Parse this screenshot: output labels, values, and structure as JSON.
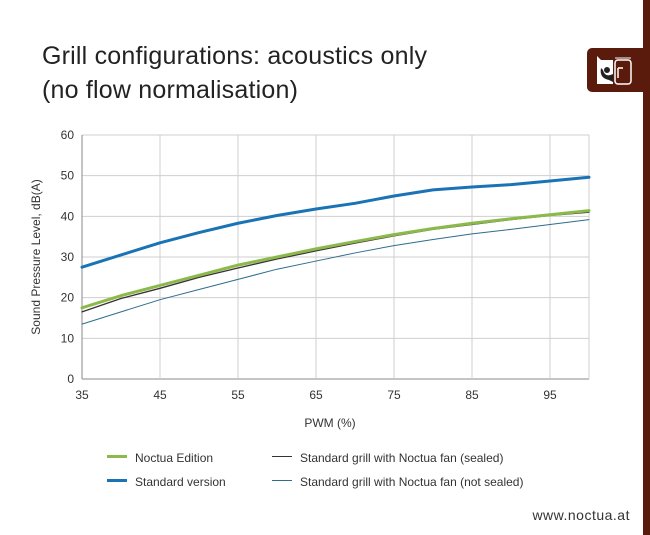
{
  "header": {
    "title_line1": "Grill configurations: acoustics only",
    "title_line2": "(no flow normalisation)"
  },
  "brand_color": "#5a1a0c",
  "logo": {
    "icon": "noctua-owl-logo"
  },
  "footer": {
    "url": "www.noctua.at"
  },
  "chart_data": {
    "type": "line",
    "title": "Grill configurations: acoustics only (no flow normalisation)",
    "xlabel": "PWM (%)",
    "ylabel": "Sound Pressure Level, dB(A)",
    "xlim": [
      35,
      100
    ],
    "ylim": [
      0,
      60
    ],
    "xticks": [
      35,
      45,
      55,
      65,
      75,
      85,
      95
    ],
    "yticks": [
      0,
      10,
      20,
      30,
      40,
      50,
      60
    ],
    "grid": true,
    "legend_position": "bottom",
    "x": [
      35,
      40,
      45,
      50,
      55,
      60,
      65,
      70,
      75,
      80,
      85,
      90,
      95,
      100
    ],
    "series": [
      {
        "name": "Noctua Edition",
        "color": "#8cba4a",
        "width": 3,
        "values": [
          17.5,
          20.5,
          23,
          25.5,
          28,
          30,
          32,
          33.8,
          35.5,
          37,
          38.3,
          39.4,
          40.4,
          41.4
        ]
      },
      {
        "name": "Standard version",
        "color": "#1a73b5",
        "width": 3,
        "values": [
          27.5,
          30.5,
          33.5,
          36,
          38.3,
          40.2,
          41.8,
          43.2,
          45,
          46.5,
          47.2,
          47.8,
          48.7,
          49.6
        ]
      },
      {
        "name": "Standard grill with Noctua fan (sealed)",
        "color": "#3a3038",
        "width": 1.3,
        "values": [
          16.5,
          19.8,
          22.3,
          25,
          27.3,
          29.5,
          31.5,
          33.4,
          35.2,
          36.8,
          38,
          39.2,
          40.2,
          41
        ]
      },
      {
        "name": "Standard grill with Noctua fan (not sealed)",
        "color": "#2d6d8c",
        "width": 1,
        "values": [
          13.5,
          16.5,
          19.5,
          22,
          24.5,
          27,
          29,
          31,
          32.8,
          34.3,
          35.7,
          36.8,
          38,
          39.2
        ]
      }
    ]
  }
}
